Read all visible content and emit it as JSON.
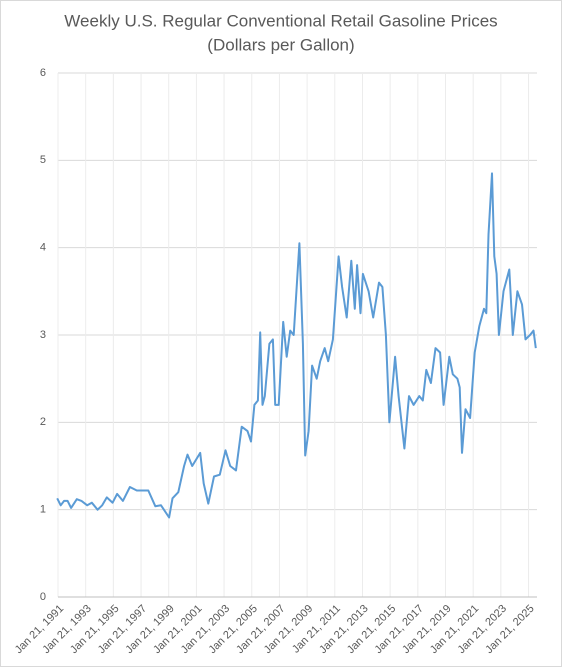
{
  "chart_data": {
    "type": "line",
    "title": "Weekly U.S. Regular Conventional Retail Gasoline Prices",
    "subtitle": "(Dollars per Gallon)",
    "x": [
      "1991-01",
      "1991-04",
      "1991-07",
      "1991-10",
      "1992-01",
      "1992-06",
      "1992-10",
      "1993-03",
      "1993-07",
      "1993-12",
      "1994-04",
      "1994-08",
      "1995-01",
      "1995-05",
      "1995-10",
      "1996-04",
      "1996-10",
      "1997-03",
      "1997-08",
      "1998-02",
      "1998-07",
      "1999-02",
      "1999-05",
      "1999-10",
      "2000-03",
      "2000-06",
      "2000-10",
      "2001-05",
      "2001-08",
      "2001-12",
      "2002-05",
      "2002-10",
      "2003-03",
      "2003-07",
      "2003-12",
      "2004-05",
      "2004-10",
      "2005-01",
      "2005-04",
      "2005-07",
      "2005-09",
      "2005-11",
      "2006-01",
      "2006-05",
      "2006-08",
      "2006-10",
      "2007-01",
      "2007-05",
      "2007-08",
      "2007-11",
      "2008-02",
      "2008-07",
      "2008-10",
      "2008-12",
      "2009-03",
      "2009-06",
      "2009-10",
      "2010-01",
      "2010-05",
      "2010-08",
      "2010-12",
      "2011-05",
      "2011-08",
      "2011-12",
      "2012-04",
      "2012-07",
      "2012-09",
      "2012-12",
      "2013-02",
      "2013-07",
      "2013-11",
      "2014-04",
      "2014-07",
      "2014-10",
      "2015-01",
      "2015-06",
      "2015-09",
      "2016-02",
      "2016-06",
      "2016-10",
      "2017-03",
      "2017-06",
      "2017-09",
      "2018-01",
      "2018-05",
      "2018-09",
      "2018-12",
      "2019-05",
      "2019-08",
      "2019-12",
      "2020-02",
      "2020-04",
      "2020-07",
      "2020-11",
      "2021-03",
      "2021-07",
      "2021-11",
      "2022-01",
      "2022-03",
      "2022-06",
      "2022-08",
      "2022-10",
      "2022-12",
      "2023-04",
      "2023-09",
      "2023-12",
      "2024-04",
      "2024-08",
      "2024-11",
      "2025-03",
      "2025-06",
      "2025-08"
    ],
    "series": [
      {
        "name": "Weekly U.S. Regular Conventional Retail Gasoline Prices",
        "color": "#5b9bd5",
        "values": [
          1.13,
          1.05,
          1.1,
          1.1,
          1.02,
          1.12,
          1.1,
          1.05,
          1.08,
          1.0,
          1.05,
          1.14,
          1.08,
          1.18,
          1.1,
          1.26,
          1.22,
          1.22,
          1.22,
          1.04,
          1.05,
          0.91,
          1.13,
          1.2,
          1.5,
          1.63,
          1.5,
          1.65,
          1.3,
          1.07,
          1.38,
          1.4,
          1.68,
          1.5,
          1.45,
          1.95,
          1.9,
          1.78,
          2.2,
          2.25,
          3.03,
          2.2,
          2.3,
          2.9,
          2.95,
          2.2,
          2.2,
          3.15,
          2.75,
          3.05,
          3.0,
          4.05,
          2.9,
          1.62,
          1.9,
          2.65,
          2.5,
          2.7,
          2.85,
          2.7,
          2.95,
          3.9,
          3.55,
          3.2,
          3.85,
          3.3,
          3.8,
          3.25,
          3.7,
          3.5,
          3.2,
          3.6,
          3.55,
          3.0,
          2.0,
          2.75,
          2.3,
          1.7,
          2.3,
          2.2,
          2.3,
          2.25,
          2.6,
          2.45,
          2.85,
          2.8,
          2.2,
          2.75,
          2.55,
          2.5,
          2.4,
          1.65,
          2.15,
          2.05,
          2.8,
          3.1,
          3.3,
          3.25,
          4.15,
          4.85,
          3.9,
          3.7,
          3.0,
          3.5,
          3.75,
          3.0,
          3.5,
          3.35,
          2.95,
          3.0,
          3.05,
          2.85
        ]
      }
    ],
    "xlim": [
      "1991-01-21",
      "2025-09-01"
    ],
    "xticks": [
      {
        "value": "1991-01-21",
        "label": "Jan 21, 1991"
      },
      {
        "value": "1993-01-21",
        "label": "Jan 21, 1993"
      },
      {
        "value": "1995-01-21",
        "label": "Jan 21, 1995"
      },
      {
        "value": "1997-01-21",
        "label": "Jan 21, 1997"
      },
      {
        "value": "1999-01-21",
        "label": "Jan 21, 1999"
      },
      {
        "value": "2001-01-21",
        "label": "Jan 21, 2001"
      },
      {
        "value": "2003-01-21",
        "label": "Jan 21, 2003"
      },
      {
        "value": "2005-01-21",
        "label": "Jan 21, 2005"
      },
      {
        "value": "2007-01-21",
        "label": "Jan 21, 2007"
      },
      {
        "value": "2009-01-21",
        "label": "Jan 21, 2009"
      },
      {
        "value": "2011-01-21",
        "label": "Jan 21, 2011"
      },
      {
        "value": "2013-01-21",
        "label": "Jan 21, 2013"
      },
      {
        "value": "2015-01-21",
        "label": "Jan 21, 2015"
      },
      {
        "value": "2017-01-21",
        "label": "Jan 21, 2017"
      },
      {
        "value": "2019-01-21",
        "label": "Jan 21, 2019"
      },
      {
        "value": "2021-01-21",
        "label": "Jan 21, 2021"
      },
      {
        "value": "2023-01-21",
        "label": "Jan 21, 2023"
      },
      {
        "value": "2025-01-21",
        "label": "Jan 21, 2025"
      }
    ],
    "ylim": [
      0,
      6
    ],
    "yticks": [
      0,
      1,
      2,
      3,
      4,
      5,
      6
    ],
    "grid": true
  }
}
